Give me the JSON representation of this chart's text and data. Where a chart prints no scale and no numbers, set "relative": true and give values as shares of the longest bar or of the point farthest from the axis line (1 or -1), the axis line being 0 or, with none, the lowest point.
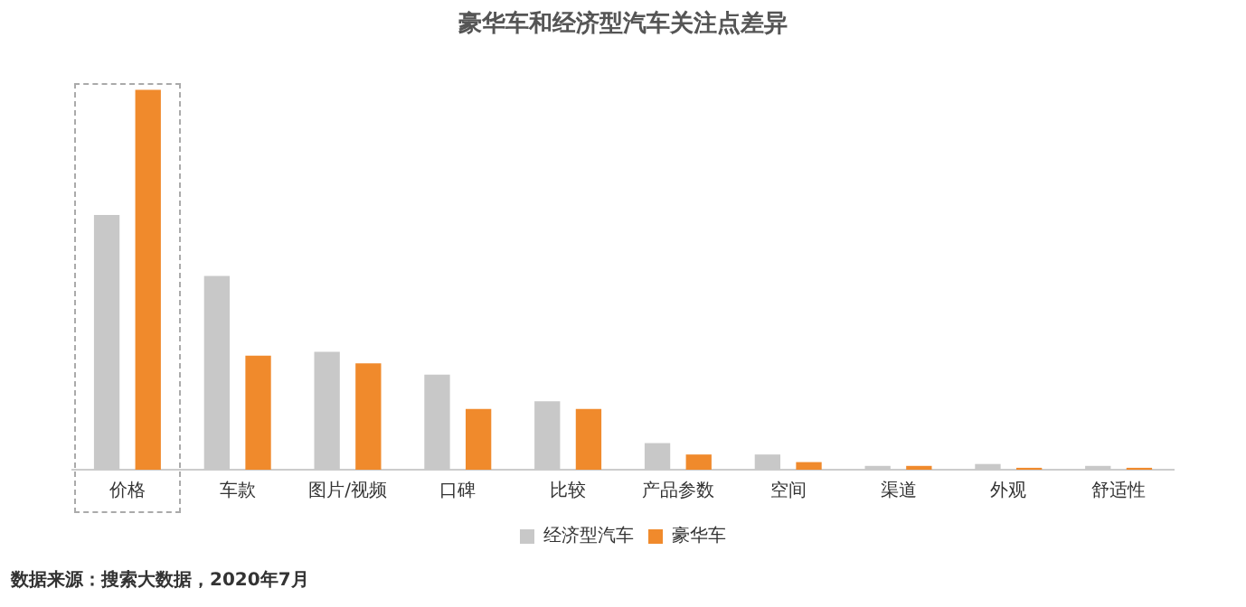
{
  "chart_data": {
    "type": "bar",
    "title": "豪华车和经济型汽车关注点差异",
    "relative": true,
    "grid": false,
    "legend": "bottom",
    "categories": [
      "价格",
      "车款",
      "图片/视频",
      "口碑",
      "比较",
      "产品参数",
      "空间",
      "渠道",
      "外观",
      "舒适性"
    ],
    "series": [
      {
        "name": "经济型汽车",
        "color": "#c8c8c8",
        "values": [
          0.67,
          0.51,
          0.31,
          0.25,
          0.18,
          0.07,
          0.04,
          0.01,
          0.015,
          0.01
        ]
      },
      {
        "name": "豪华车",
        "color": "#f08a2c",
        "values": [
          1,
          0.3,
          0.28,
          0.16,
          0.16,
          0.04,
          0.02,
          0.01,
          0.005,
          0.005
        ]
      }
    ],
    "annotations": [
      "数据来源：搜索大数据，2020年7月"
    ]
  }
}
